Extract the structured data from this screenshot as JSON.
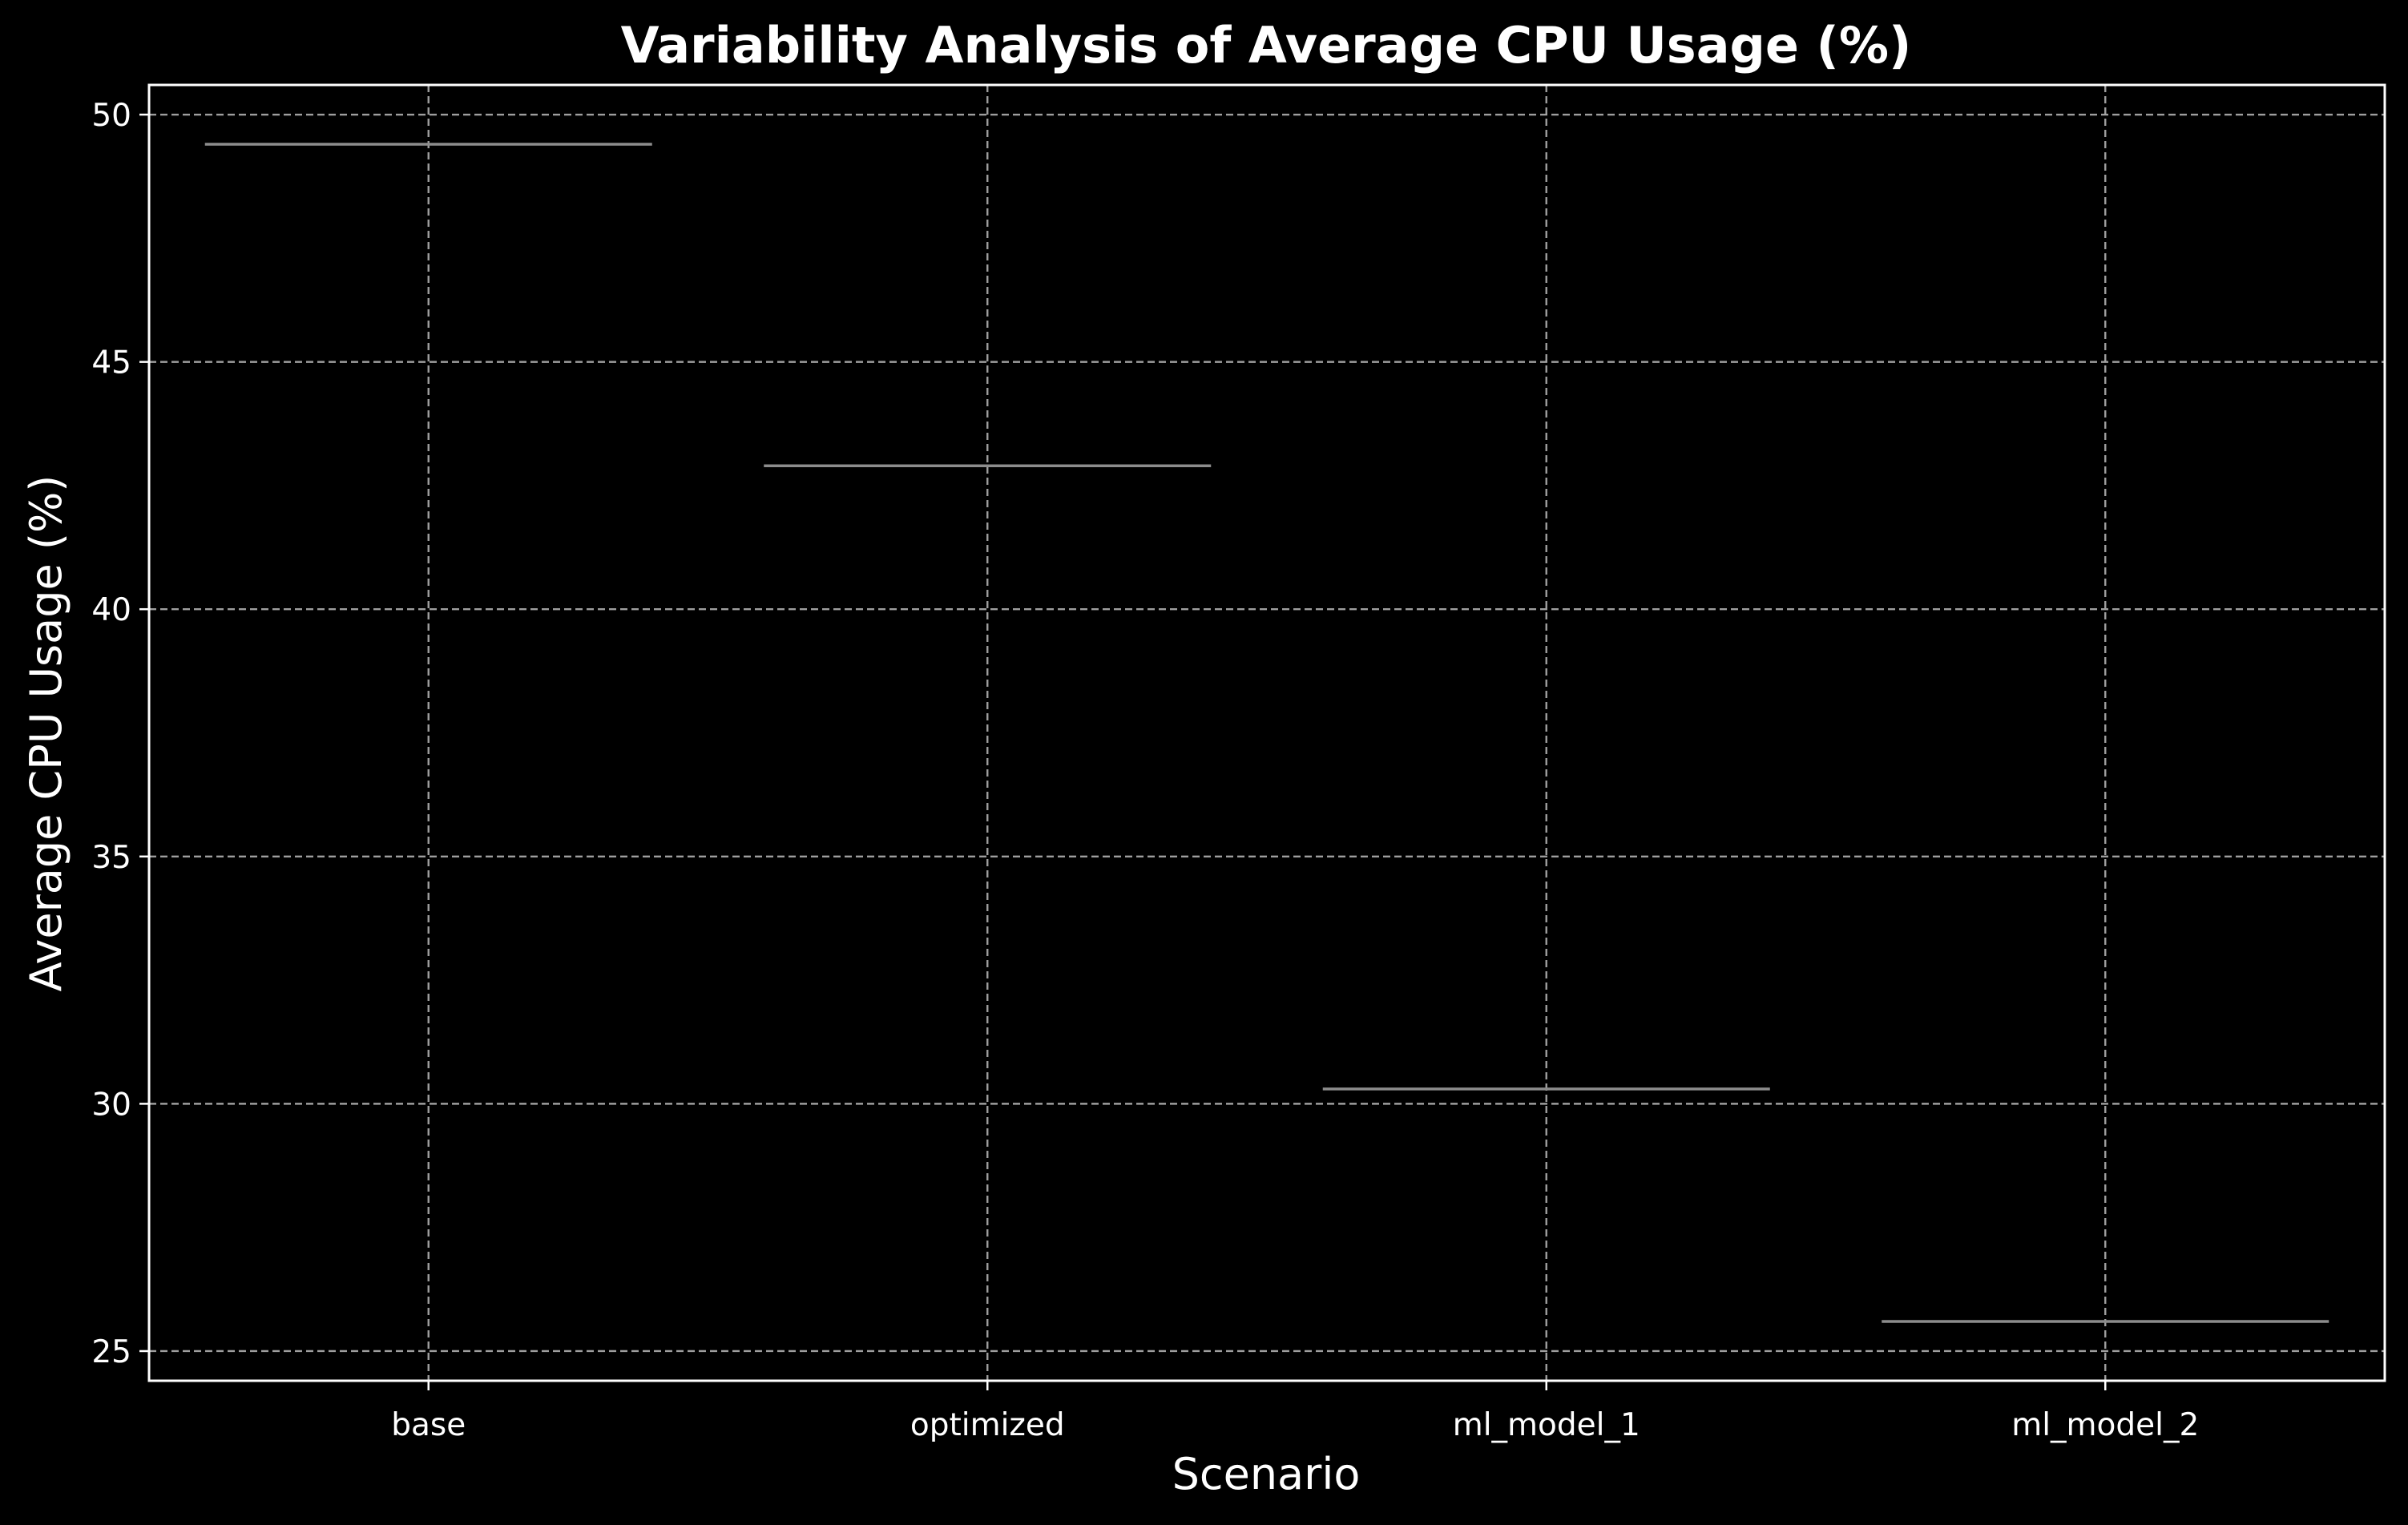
{
  "chart_data": {
    "type": "box",
    "title": "Variability Analysis of Average CPU Usage (%)",
    "xlabel": "Scenario",
    "ylabel": "Average CPU Usage (%)",
    "categories": [
      "base",
      "optimized",
      "ml_model_1",
      "ml_model_2"
    ],
    "values": [
      49.4,
      42.9,
      30.3,
      25.6
    ],
    "ylim": [
      24.4,
      50.6
    ],
    "yticks": [
      25,
      30,
      35,
      40,
      45,
      50
    ],
    "grid": true,
    "legend": "none"
  },
  "colors": {
    "background": "#000000",
    "text": "#ffffff",
    "grid": "#b0b0b0",
    "median": "#8c8c8c"
  }
}
